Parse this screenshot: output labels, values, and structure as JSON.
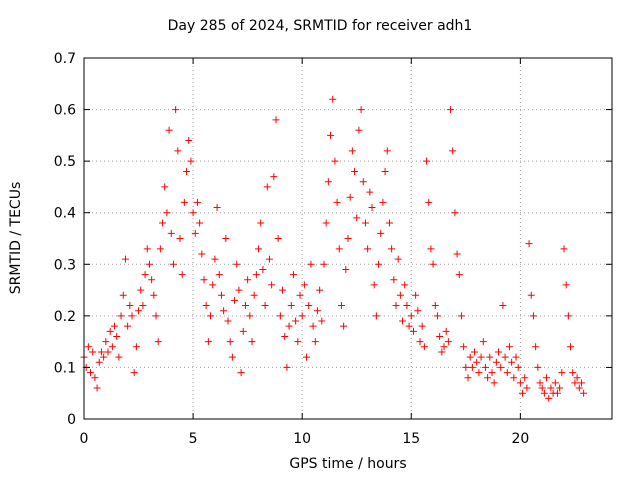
{
  "chart_data": {
    "type": "scatter",
    "title": "Day 285 of 2024, SRMTID for receiver adh1",
    "xlabel": "GPS time / hours",
    "ylabel": "SRMTID / TECUs",
    "xlim": [
      0,
      24.2
    ],
    "ylim": [
      0,
      0.7
    ],
    "xticks": [
      0,
      5,
      10,
      15,
      20
    ],
    "xtick_labels": [
      "0",
      "5",
      "10",
      "15",
      "20"
    ],
    "yticks": [
      0,
      0.1,
      0.2,
      0.3,
      0.4,
      0.5,
      0.6,
      0.7
    ],
    "ytick_labels": [
      "0",
      "0.1",
      "0.2",
      "0.3",
      "0.4",
      "0.5",
      "0.6",
      "0.7"
    ],
    "grid": true,
    "marker": "plus",
    "series": [
      {
        "name": "adh1",
        "color": "#ff0000",
        "points": [
          [
            0.0,
            0.12
          ],
          [
            0.1,
            0.1
          ],
          [
            0.2,
            0.14
          ],
          [
            0.3,
            0.09
          ],
          [
            0.4,
            0.13
          ],
          [
            0.5,
            0.08
          ],
          [
            0.6,
            0.06
          ],
          [
            0.7,
            0.11
          ],
          [
            0.8,
            0.13
          ],
          [
            0.9,
            0.12
          ],
          [
            1.0,
            0.15
          ],
          [
            1.1,
            0.13
          ],
          [
            1.2,
            0.17
          ],
          [
            1.3,
            0.14
          ],
          [
            1.4,
            0.18
          ],
          [
            1.5,
            0.16
          ],
          [
            1.6,
            0.12
          ],
          [
            1.7,
            0.2
          ],
          [
            1.8,
            0.24
          ],
          [
            1.9,
            0.31
          ],
          [
            2.0,
            0.18
          ],
          [
            2.1,
            0.22
          ],
          [
            2.2,
            0.2
          ],
          [
            2.3,
            0.09
          ],
          [
            2.4,
            0.14
          ],
          [
            2.5,
            0.21
          ],
          [
            2.6,
            0.25
          ],
          [
            2.7,
            0.22
          ],
          [
            2.8,
            0.28
          ],
          [
            2.9,
            0.33
          ],
          [
            3.0,
            0.3
          ],
          [
            3.1,
            0.27
          ],
          [
            3.2,
            0.24
          ],
          [
            3.3,
            0.2
          ],
          [
            3.4,
            0.15
          ],
          [
            3.5,
            0.33
          ],
          [
            3.6,
            0.38
          ],
          [
            3.7,
            0.45
          ],
          [
            3.8,
            0.4
          ],
          [
            3.9,
            0.56
          ],
          [
            4.0,
            0.36
          ],
          [
            4.1,
            0.3
          ],
          [
            4.2,
            0.6
          ],
          [
            4.3,
            0.52
          ],
          [
            4.4,
            0.35
          ],
          [
            4.5,
            0.28
          ],
          [
            4.6,
            0.42
          ],
          [
            4.7,
            0.48
          ],
          [
            4.8,
            0.54
          ],
          [
            4.9,
            0.5
          ],
          [
            5.0,
            0.4
          ],
          [
            5.1,
            0.36
          ],
          [
            5.2,
            0.42
          ],
          [
            5.3,
            0.38
          ],
          [
            5.4,
            0.32
          ],
          [
            5.5,
            0.27
          ],
          [
            5.6,
            0.22
          ],
          [
            5.7,
            0.15
          ],
          [
            5.8,
            0.2
          ],
          [
            5.9,
            0.26
          ],
          [
            6.0,
            0.31
          ],
          [
            6.1,
            0.41
          ],
          [
            6.2,
            0.28
          ],
          [
            6.3,
            0.24
          ],
          [
            6.4,
            0.21
          ],
          [
            6.5,
            0.35
          ],
          [
            6.6,
            0.19
          ],
          [
            6.7,
            0.15
          ],
          [
            6.8,
            0.12
          ],
          [
            6.9,
            0.23
          ],
          [
            7.0,
            0.3
          ],
          [
            7.1,
            0.25
          ],
          [
            7.2,
            0.09
          ],
          [
            7.3,
            0.17
          ],
          [
            7.4,
            0.22
          ],
          [
            7.5,
            0.27
          ],
          [
            7.6,
            0.2
          ],
          [
            7.7,
            0.15
          ],
          [
            7.8,
            0.24
          ],
          [
            7.9,
            0.28
          ],
          [
            8.0,
            0.33
          ],
          [
            8.1,
            0.38
          ],
          [
            8.2,
            0.29
          ],
          [
            8.3,
            0.22
          ],
          [
            8.4,
            0.45
          ],
          [
            8.5,
            0.31
          ],
          [
            8.6,
            0.26
          ],
          [
            8.7,
            0.47
          ],
          [
            8.8,
            0.58
          ],
          [
            8.9,
            0.35
          ],
          [
            9.0,
            0.2
          ],
          [
            9.1,
            0.25
          ],
          [
            9.2,
            0.16
          ],
          [
            9.3,
            0.1
          ],
          [
            9.4,
            0.18
          ],
          [
            9.5,
            0.22
          ],
          [
            9.6,
            0.28
          ],
          [
            9.7,
            0.19
          ],
          [
            9.8,
            0.15
          ],
          [
            9.9,
            0.24
          ],
          [
            10.0,
            0.2
          ],
          [
            10.1,
            0.26
          ],
          [
            10.2,
            0.12
          ],
          [
            10.3,
            0.22
          ],
          [
            10.4,
            0.3
          ],
          [
            10.5,
            0.18
          ],
          [
            10.6,
            0.15
          ],
          [
            10.7,
            0.21
          ],
          [
            10.8,
            0.25
          ],
          [
            10.9,
            0.19
          ],
          [
            11.0,
            0.3
          ],
          [
            11.1,
            0.38
          ],
          [
            11.2,
            0.46
          ],
          [
            11.3,
            0.55
          ],
          [
            11.4,
            0.62
          ],
          [
            11.5,
            0.5
          ],
          [
            11.6,
            0.42
          ],
          [
            11.7,
            0.33
          ],
          [
            11.8,
            0.22
          ],
          [
            11.9,
            0.18
          ],
          [
            12.0,
            0.29
          ],
          [
            12.1,
            0.35
          ],
          [
            12.2,
            0.43
          ],
          [
            12.3,
            0.52
          ],
          [
            12.4,
            0.48
          ],
          [
            12.5,
            0.39
          ],
          [
            12.6,
            0.56
          ],
          [
            12.7,
            0.6
          ],
          [
            12.8,
            0.46
          ],
          [
            12.9,
            0.38
          ],
          [
            13.0,
            0.33
          ],
          [
            13.1,
            0.44
          ],
          [
            13.2,
            0.41
          ],
          [
            13.3,
            0.26
          ],
          [
            13.4,
            0.2
          ],
          [
            13.5,
            0.3
          ],
          [
            13.6,
            0.36
          ],
          [
            13.7,
            0.42
          ],
          [
            13.8,
            0.48
          ],
          [
            13.9,
            0.52
          ],
          [
            14.0,
            0.38
          ],
          [
            14.1,
            0.33
          ],
          [
            14.2,
            0.27
          ],
          [
            14.3,
            0.22
          ],
          [
            14.4,
            0.31
          ],
          [
            14.5,
            0.24
          ],
          [
            14.6,
            0.19
          ],
          [
            14.7,
            0.26
          ],
          [
            14.8,
            0.22
          ],
          [
            14.9,
            0.18
          ],
          [
            15.0,
            0.2
          ],
          [
            15.1,
            0.17
          ],
          [
            15.2,
            0.24
          ],
          [
            15.3,
            0.21
          ],
          [
            15.4,
            0.15
          ],
          [
            15.5,
            0.18
          ],
          [
            15.6,
            0.14
          ],
          [
            15.7,
            0.5
          ],
          [
            15.8,
            0.42
          ],
          [
            15.9,
            0.33
          ],
          [
            16.0,
            0.3
          ],
          [
            16.1,
            0.22
          ],
          [
            16.2,
            0.2
          ],
          [
            16.3,
            0.16
          ],
          [
            16.4,
            0.13
          ],
          [
            16.5,
            0.14
          ],
          [
            16.6,
            0.17
          ],
          [
            16.7,
            0.15
          ],
          [
            16.8,
            0.6
          ],
          [
            16.9,
            0.52
          ],
          [
            17.0,
            0.4
          ],
          [
            17.1,
            0.32
          ],
          [
            17.2,
            0.28
          ],
          [
            17.3,
            0.2
          ],
          [
            17.4,
            0.14
          ],
          [
            17.5,
            0.1
          ],
          [
            17.6,
            0.08
          ],
          [
            17.7,
            0.12
          ],
          [
            17.8,
            0.1
          ],
          [
            17.9,
            0.13
          ],
          [
            18.0,
            0.11
          ],
          [
            18.1,
            0.09
          ],
          [
            18.2,
            0.12
          ],
          [
            18.3,
            0.15
          ],
          [
            18.4,
            0.1
          ],
          [
            18.5,
            0.08
          ],
          [
            18.6,
            0.12
          ],
          [
            18.7,
            0.09
          ],
          [
            18.8,
            0.07
          ],
          [
            18.9,
            0.11
          ],
          [
            19.0,
            0.13
          ],
          [
            19.1,
            0.1
          ],
          [
            19.2,
            0.22
          ],
          [
            19.3,
            0.12
          ],
          [
            19.4,
            0.09
          ],
          [
            19.5,
            0.14
          ],
          [
            19.6,
            0.11
          ],
          [
            19.7,
            0.08
          ],
          [
            19.8,
            0.12
          ],
          [
            19.9,
            0.1
          ],
          [
            20.0,
            0.07
          ],
          [
            20.1,
            0.05
          ],
          [
            20.2,
            0.08
          ],
          [
            20.3,
            0.06
          ],
          [
            20.4,
            0.34
          ],
          [
            20.5,
            0.24
          ],
          [
            20.6,
            0.2
          ],
          [
            20.7,
            0.14
          ],
          [
            20.8,
            0.1
          ],
          [
            20.9,
            0.07
          ],
          [
            21.0,
            0.06
          ],
          [
            21.1,
            0.05
          ],
          [
            21.2,
            0.08
          ],
          [
            21.3,
            0.04
          ],
          [
            21.4,
            0.06
          ],
          [
            21.5,
            0.05
          ],
          [
            21.6,
            0.07
          ],
          [
            21.7,
            0.05
          ],
          [
            21.8,
            0.06
          ],
          [
            21.9,
            0.09
          ],
          [
            22.0,
            0.33
          ],
          [
            22.1,
            0.26
          ],
          [
            22.2,
            0.2
          ],
          [
            22.3,
            0.14
          ],
          [
            22.4,
            0.09
          ],
          [
            22.5,
            0.07
          ],
          [
            22.6,
            0.08
          ],
          [
            22.7,
            0.06
          ],
          [
            22.8,
            0.07
          ],
          [
            22.9,
            0.05
          ]
        ]
      }
    ]
  }
}
